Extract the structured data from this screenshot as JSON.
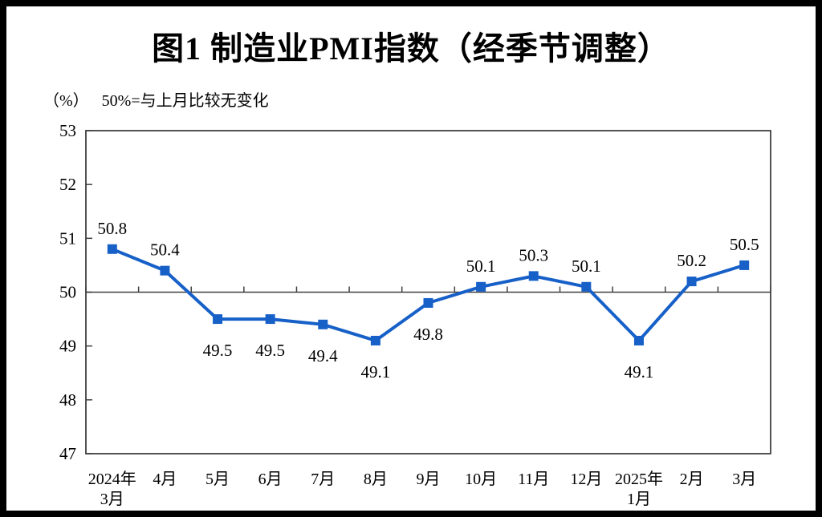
{
  "page": {
    "title": "图1 制造业PMI指数（经季节调整）",
    "unit_label": "（%）",
    "note": "50%=与上月比较无变化"
  },
  "chart_data": {
    "type": "line",
    "title": "图1 制造业PMI指数（经季节调整）",
    "unit_label": "（%）",
    "subtitle": "50%=与上月比较无变化",
    "categories": [
      "2024年\n3月",
      "4月",
      "5月",
      "6月",
      "7月",
      "8月",
      "9月",
      "10月",
      "11月",
      "12月",
      "2025年\n1月",
      "2月",
      "3月"
    ],
    "series": [
      {
        "name": "制造业PMI",
        "values": [
          50.8,
          50.4,
          49.5,
          49.5,
          49.4,
          49.1,
          49.8,
          50.1,
          50.3,
          50.1,
          49.1,
          50.2,
          50.5
        ],
        "data_label_side": [
          "above",
          "above",
          "below",
          "below",
          "below",
          "below",
          "below",
          "above",
          "above",
          "above",
          "below",
          "above",
          "above"
        ]
      }
    ],
    "ylim": [
      47,
      53
    ],
    "yticks": [
      47,
      48,
      49,
      50,
      51,
      52,
      53
    ],
    "reference_line": 50,
    "grid": false,
    "legend": "none",
    "marker": "square",
    "line_color": "#1660C8",
    "axis_color": "#404040",
    "label_color": "#000000"
  }
}
